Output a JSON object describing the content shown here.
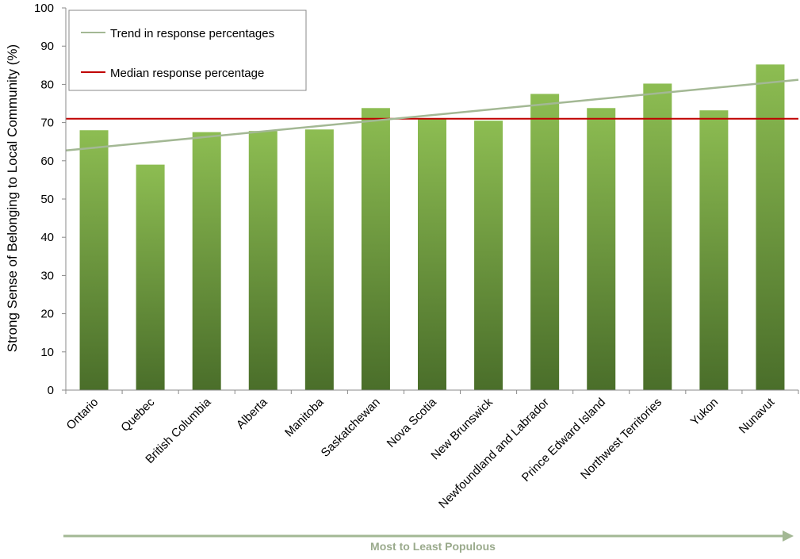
{
  "chart_data": {
    "type": "bar",
    "categories": [
      "Ontario",
      "Quebec",
      "British Columbia",
      "Alberta",
      "Manitoba",
      "Saskatchewan",
      "Nova Scotia",
      "New Brunswick",
      "Newfoundland and Labrador",
      "Prince Edward Island",
      "Northwest Territories",
      "Yukon",
      "Nunavut"
    ],
    "values": [
      68.0,
      59.0,
      67.5,
      67.8,
      68.2,
      73.8,
      71.0,
      70.5,
      77.5,
      73.8,
      80.2,
      73.2,
      85.2
    ],
    "ylabel": "Strong Sense of Belonging to Local Community (%)",
    "ylim": [
      0,
      100
    ],
    "yticks": [
      0,
      10,
      20,
      30,
      40,
      50,
      60,
      70,
      80,
      90,
      100
    ],
    "bar_color": "#8dbd52",
    "bar_color_dark": "#4a6e2a",
    "trend": {
      "name": "Trend in response percentages",
      "start": 62.7,
      "end": 81.2,
      "color": "#a3b894"
    },
    "median": {
      "name": "Median response percentage",
      "value": 71.0,
      "color": "#c00000"
    },
    "arrow_label": "Most to Least Populous",
    "arrow_color": "#a3b894",
    "legend_position": "top-left"
  }
}
